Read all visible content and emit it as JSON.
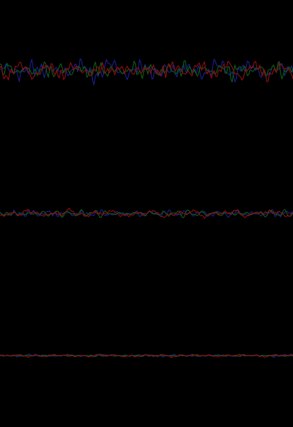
{
  "chart_data": {
    "type": "line",
    "background": "#000000",
    "grid": false,
    "legend": "none",
    "x_range": [
      0,
      1
    ],
    "panels": [
      {
        "ylim": [
          -1,
          1
        ],
        "series": [
          {
            "color": "#1a1f8c",
            "amplitude": 0.75
          },
          {
            "color": "#0d5c12",
            "amplitude": 0.6
          },
          {
            "color": "#8a0f12",
            "amplitude": 0.65
          }
        ]
      },
      {
        "ylim": [
          -1,
          1
        ],
        "series": [
          {
            "color": "#1a1f8c",
            "amplitude": 0.28
          },
          {
            "color": "#0d5c12",
            "amplitude": 0.22
          },
          {
            "color": "#8a0f12",
            "amplitude": 0.25
          }
        ]
      },
      {
        "ylim": [
          -1,
          1
        ],
        "series": [
          {
            "color": "#1a1f8c",
            "amplitude": 0.12
          },
          {
            "color": "#0d5c12",
            "amplitude": 0.08
          },
          {
            "color": "#8a0f12",
            "amplitude": 0.1
          }
        ]
      }
    ]
  }
}
